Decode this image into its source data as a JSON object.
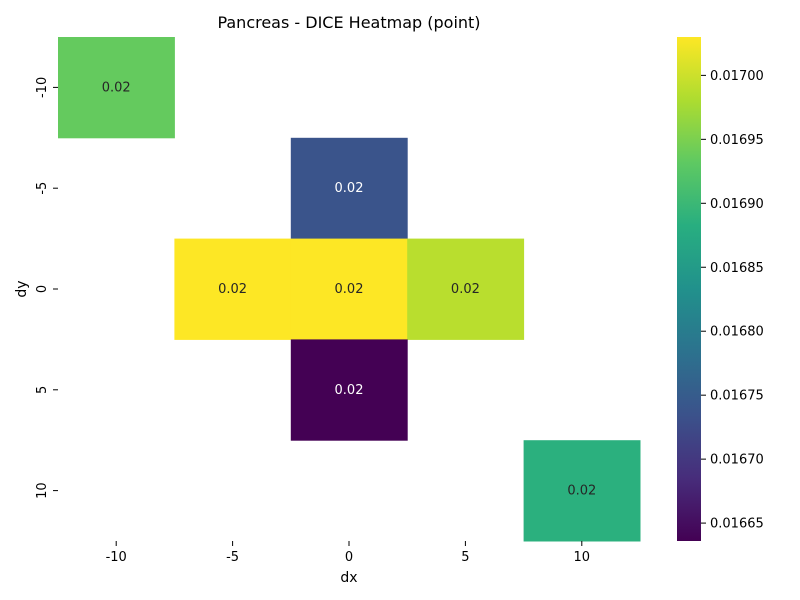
{
  "chart_data": {
    "type": "heatmap",
    "title": "Pancreas - DICE Heatmap (point)",
    "xlabel": "dx",
    "ylabel": "dy",
    "x_categories": [
      "-10",
      "-5",
      "0",
      "5",
      "10"
    ],
    "y_categories": [
      "-10",
      "-5",
      "0",
      "5",
      "10"
    ],
    "cells": [
      {
        "dx": "-10",
        "dy": "-10",
        "value": 0.016935,
        "label": "0.02"
      },
      {
        "dx": "0",
        "dy": "-5",
        "value": 0.016737,
        "label": "0.02"
      },
      {
        "dx": "-5",
        "dy": "0",
        "value": 0.01703,
        "label": "0.02"
      },
      {
        "dx": "0",
        "dy": "0",
        "value": 0.01703,
        "label": "0.02"
      },
      {
        "dx": "5",
        "dy": "0",
        "value": 0.016988,
        "label": "0.02"
      },
      {
        "dx": "0",
        "dy": "5",
        "value": 0.016636,
        "label": "0.02"
      },
      {
        "dx": "10",
        "dy": "10",
        "value": 0.016885,
        "label": "0.02"
      }
    ],
    "colormap": "viridis",
    "colorbar": {
      "vmin": 0.016636,
      "vmax": 0.01703,
      "ticks": [
        0.01665,
        0.0167,
        0.01675,
        0.0168,
        0.01685,
        0.0169,
        0.01695,
        0.017
      ],
      "tick_labels": [
        "0.01665",
        "0.01670",
        "0.01675",
        "0.01680",
        "0.01685",
        "0.01690",
        "0.01695",
        "0.01700"
      ]
    },
    "grid": false,
    "colorbar_position": "right"
  }
}
